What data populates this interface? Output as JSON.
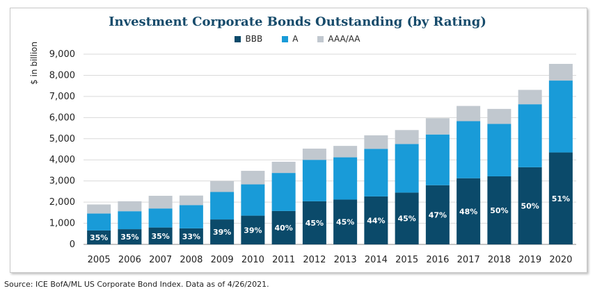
{
  "chart_data": {
    "type": "bar",
    "stacked": true,
    "title": "Investment Corporate Bonds Outstanding (by Rating)",
    "ylabel": "$ in billion",
    "xlabel": "",
    "ylim": [
      0,
      9000
    ],
    "yticks": [
      "0",
      "1,000",
      "2,000",
      "3,000",
      "4,000",
      "5,000",
      "6,000",
      "7,000",
      "8,000",
      "9,000"
    ],
    "ytick_values": [
      0,
      1000,
      2000,
      3000,
      4000,
      5000,
      6000,
      7000,
      8000,
      9000
    ],
    "categories": [
      "2005",
      "2006",
      "2007",
      "2008",
      "2009",
      "2010",
      "2011",
      "2012",
      "2013",
      "2014",
      "2015",
      "2016",
      "2017",
      "2018",
      "2019",
      "2020"
    ],
    "series": [
      {
        "name": "BBB",
        "color": "#0b4a6a",
        "values": [
          660,
          720,
          800,
          760,
          1180,
          1360,
          1580,
          2040,
          2120,
          2270,
          2450,
          2800,
          3130,
          3220,
          3650,
          4350
        ]
      },
      {
        "name": "A",
        "color": "#199bd8",
        "values": [
          800,
          850,
          900,
          1100,
          1300,
          1480,
          1800,
          1960,
          2000,
          2250,
          2300,
          2400,
          2700,
          2480,
          2980,
          3400
        ]
      },
      {
        "name": "AAA/AA",
        "color": "#c1c8cf",
        "values": [
          430,
          470,
          600,
          450,
          520,
          640,
          530,
          530,
          540,
          640,
          660,
          770,
          720,
          710,
          680,
          790
        ]
      }
    ],
    "bbb_share_labels": [
      "35%",
      "35%",
      "35%",
      "33%",
      "39%",
      "39%",
      "40%",
      "45%",
      "45%",
      "44%",
      "45%",
      "47%",
      "48%",
      "50%",
      "50%",
      "51%"
    ],
    "legend_position": "top-center",
    "grid": "horizontal"
  },
  "source_note": "Source: ICE BofA/ML US Corporate Bond Index. Data as of 4/26/2021."
}
